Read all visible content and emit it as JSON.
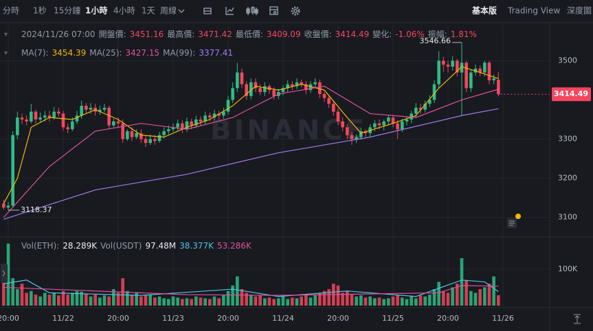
{
  "toolbar": {
    "intervals": [
      "分時",
      "1秒",
      "15分鐘",
      "1小時",
      "4小時",
      "1天",
      "周線"
    ],
    "active_interval": 3,
    "views": [
      "基本版",
      "Trading View",
      "深度圖"
    ],
    "active_view": 0
  },
  "info": {
    "time": "2024/11/26 07:00",
    "open_label": "開盤價:",
    "high_label": "最高價:",
    "low_label": "最低價:",
    "close_label": "收盤價:",
    "change_label": "變化:",
    "change": "-1.06%",
    "amplitude_label": "振幅:",
    "amplitude": "1.81%"
  },
  "chart_data": {
    "type": "candlestick",
    "watermark": "BINANCE",
    "up_color": "#2ebd85",
    "down_color": "#f6465d",
    "xlim": [
      -0.8,
      119.2
    ],
    "xticks": [
      {
        "value": 1,
        "label": "20:00"
      },
      {
        "value": 13,
        "label": "11/22"
      },
      {
        "value": 25,
        "label": "20:00"
      },
      {
        "value": 37,
        "label": "11/23"
      },
      {
        "value": 49,
        "label": "20:00"
      },
      {
        "value": 61,
        "label": "11/24"
      },
      {
        "value": 73,
        "label": "20:00"
      },
      {
        "value": 85,
        "label": "11/25"
      },
      {
        "value": 97,
        "label": "20:00"
      },
      {
        "value": 109,
        "label": "11/26"
      }
    ],
    "ylim": [
      3050,
      3585
    ],
    "yticks": [
      3100,
      3200,
      3300,
      3500
    ],
    "open": [
      3135,
      3125,
      3130,
      3310,
      3355,
      3350,
      3345,
      3370,
      3350,
      3355,
      3360,
      3355,
      3370,
      3365,
      3330,
      3325,
      3345,
      3360,
      3385,
      3375,
      3380,
      3370,
      3375,
      3380,
      3335,
      3345,
      3340,
      3300,
      3320,
      3305,
      3315,
      3300,
      3290,
      3300,
      3295,
      3310,
      3320,
      3325,
      3330,
      3340,
      3325,
      3345,
      3335,
      3350,
      3345,
      3360,
      3355,
      3365,
      3360,
      3370,
      3400,
      3430,
      3470,
      3440,
      3410,
      3445,
      3430,
      3420,
      3435,
      3425,
      3410,
      3420,
      3430,
      3440,
      3435,
      3445,
      3440,
      3425,
      3440,
      3445,
      3415,
      3405,
      3390,
      3370,
      3345,
      3330,
      3310,
      3300,
      3305,
      3320,
      3315,
      3330,
      3340,
      3335,
      3345,
      3355,
      3340,
      3325,
      3345,
      3350,
      3365,
      3380,
      3375,
      3390,
      3400,
      3440,
      3500,
      3490,
      3485,
      3500,
      3470,
      3495,
      3430,
      3470,
      3480,
      3470,
      3495,
      3450,
      3451.16
    ],
    "high": [
      3145,
      3140,
      3320,
      3370,
      3365,
      3360,
      3390,
      3375,
      3368,
      3372,
      3372,
      3382,
      3380,
      3372,
      3340,
      3355,
      3372,
      3398,
      3392,
      3392,
      3390,
      3385,
      3390,
      3385,
      3352,
      3355,
      3350,
      3325,
      3330,
      3325,
      3325,
      3310,
      3312,
      3310,
      3318,
      3330,
      3335,
      3340,
      3350,
      3348,
      3355,
      3352,
      3360,
      3358,
      3370,
      3368,
      3375,
      3372,
      3380,
      3410,
      3445,
      3495,
      3480,
      3448,
      3455,
      3455,
      3440,
      3445,
      3440,
      3432,
      3428,
      3438,
      3450,
      3448,
      3455,
      3452,
      3448,
      3448,
      3455,
      3452,
      3420,
      3412,
      3398,
      3378,
      3355,
      3338,
      3318,
      3312,
      3328,
      3325,
      3338,
      3348,
      3350,
      3350,
      3362,
      3362,
      3348,
      3352,
      3358,
      3372,
      3392,
      3390,
      3398,
      3412,
      3450,
      3525,
      3510,
      3500,
      3512,
      3505,
      3546.66,
      3500,
      3478,
      3490,
      3488,
      3500,
      3500,
      3465,
      3471.42
    ],
    "low": [
      3120,
      3118.37,
      3125,
      3300,
      3338,
      3335,
      3340,
      3340,
      3342,
      3345,
      3345,
      3350,
      3358,
      3322,
      3315,
      3320,
      3338,
      3352,
      3365,
      3365,
      3360,
      3362,
      3368,
      3325,
      3330,
      3328,
      3290,
      3295,
      3295,
      3300,
      3290,
      3280,
      3285,
      3285,
      3290,
      3302,
      3312,
      3318,
      3322,
      3315,
      3318,
      3325,
      3328,
      3335,
      3338,
      3345,
      3348,
      3350,
      3352,
      3362,
      3392,
      3420,
      3430,
      3400,
      3402,
      3420,
      3412,
      3410,
      3415,
      3400,
      3402,
      3412,
      3420,
      3425,
      3428,
      3432,
      3415,
      3418,
      3432,
      3405,
      3395,
      3380,
      3360,
      3335,
      3320,
      3300,
      3285,
      3290,
      3298,
      3305,
      3305,
      3320,
      3325,
      3322,
      3335,
      3330,
      3300,
      3318,
      3335,
      3340,
      3355,
      3365,
      3368,
      3382,
      3392,
      3430,
      3472,
      3470,
      3475,
      3460,
      3360,
      3420,
      3420,
      3462,
      3460,
      3460,
      3440,
      3440,
      3409.09
    ],
    "close": [
      3125,
      3130,
      3310,
      3355,
      3350,
      3345,
      3370,
      3350,
      3355,
      3360,
      3355,
      3370,
      3365,
      3330,
      3325,
      3345,
      3360,
      3385,
      3375,
      3380,
      3370,
      3375,
      3380,
      3335,
      3345,
      3340,
      3300,
      3320,
      3305,
      3315,
      3300,
      3290,
      3300,
      3295,
      3310,
      3320,
      3325,
      3330,
      3340,
      3325,
      3345,
      3335,
      3350,
      3345,
      3360,
      3355,
      3365,
      3360,
      3370,
      3400,
      3430,
      3470,
      3440,
      3410,
      3445,
      3430,
      3420,
      3435,
      3425,
      3410,
      3420,
      3430,
      3440,
      3435,
      3445,
      3440,
      3425,
      3440,
      3445,
      3415,
      3405,
      3390,
      3370,
      3345,
      3330,
      3310,
      3300,
      3305,
      3320,
      3315,
      3330,
      3340,
      3335,
      3345,
      3355,
      3340,
      3325,
      3345,
      3350,
      3365,
      3380,
      3375,
      3390,
      3400,
      3440,
      3500,
      3490,
      3485,
      3500,
      3470,
      3495,
      3430,
      3470,
      3480,
      3470,
      3495,
      3450,
      3455,
      3414.49
    ],
    "ma_lines": [
      {
        "name": "MA(7):",
        "color": "#f0b90b",
        "x": [
          0,
          3,
          6,
          10,
          15,
          20,
          25,
          30,
          35,
          40,
          45,
          50,
          55,
          60,
          65,
          70,
          75,
          78,
          85,
          90,
          95,
          100,
          104,
          108
        ],
        "values": [
          3135,
          3200,
          3330,
          3355,
          3350,
          3375,
          3350,
          3310,
          3305,
          3330,
          3350,
          3385,
          3435,
          3425,
          3440,
          3425,
          3355,
          3315,
          3340,
          3360,
          3430,
          3485,
          3470,
          3454.39
        ]
      },
      {
        "name": "MA(25):",
        "color": "#e0529c",
        "x": [
          0,
          10,
          20,
          30,
          40,
          50,
          60,
          70,
          80,
          90,
          100,
          108
        ],
        "values": [
          3100,
          3230,
          3320,
          3340,
          3325,
          3355,
          3415,
          3435,
          3365,
          3355,
          3400,
          3427.15
        ]
      },
      {
        "name": "MA(99):",
        "color": "#a57af0",
        "x": [
          0,
          20,
          40,
          60,
          80,
          100,
          108
        ],
        "values": [
          3095,
          3170,
          3210,
          3265,
          3305,
          3360,
          3377.41
        ]
      }
    ],
    "volume_label": "Vol(ETH):",
    "volume_value": "28.289K",
    "volume_usdt_label": "Vol(USDT)",
    "volume_usdt_value": "97.48M",
    "volume_ylim": [
      0,
      175000
    ],
    "volume_yticks": [
      {
        "value": 100000,
        "label": "100K"
      }
    ],
    "volume": [
      85000,
      170000,
      75000,
      45000,
      60000,
      35000,
      40000,
      30000,
      25000,
      35000,
      30000,
      35000,
      28000,
      40000,
      30000,
      35000,
      40000,
      38000,
      32000,
      25000,
      30000,
      22000,
      28000,
      25000,
      45000,
      35000,
      75000,
      40000,
      30000,
      35000,
      25000,
      28000,
      30000,
      22000,
      25000,
      20000,
      18000,
      25000,
      22000,
      18000,
      20000,
      18000,
      25000,
      22000,
      20000,
      18000,
      25000,
      20000,
      28000,
      40000,
      55000,
      80000,
      45000,
      35000,
      30000,
      25000,
      28000,
      20000,
      22000,
      18000,
      20000,
      25000,
      18000,
      22000,
      20000,
      25000,
      30000,
      22000,
      28000,
      35000,
      40000,
      45000,
      60000,
      55000,
      35000,
      40000,
      30000,
      25000,
      28000,
      22000,
      25000,
      20000,
      22000,
      18000,
      20000,
      25000,
      30000,
      22000,
      18000,
      25000,
      20000,
      28000,
      25000,
      30000,
      45000,
      65000,
      40000,
      35000,
      50000,
      60000,
      130000,
      70000,
      40000,
      35000,
      45000,
      50000,
      60000,
      80000,
      28289
    ],
    "volume_ma_lines": [
      {
        "label": "38.377K",
        "color": "#4fc3e8",
        "x": [
          0,
          5,
          10,
          30,
          50,
          60,
          75,
          90,
          100,
          105,
          108
        ],
        "values": [
          60000,
          70000,
          35000,
          28000,
          45000,
          25000,
          40000,
          25000,
          70000,
          65000,
          38377
        ]
      },
      {
        "label": "53.286K",
        "color": "#e0529c",
        "x": [
          0,
          20,
          40,
          60,
          80,
          95,
          100,
          108
        ],
        "values": [
          50000,
          40000,
          30000,
          28000,
          32000,
          35000,
          55000,
          53286
        ]
      }
    ]
  }
}
